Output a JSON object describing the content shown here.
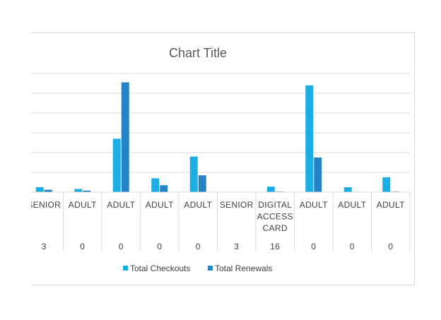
{
  "chart_data": {
    "type": "bar",
    "title": "Chart Title",
    "categories": [
      [
        "SENIOR",
        "3"
      ],
      [
        "ADULT",
        "0"
      ],
      [
        "ADULT",
        "0"
      ],
      [
        "ADULT",
        "0"
      ],
      [
        "ADULT",
        "0"
      ],
      [
        "SENIOR",
        "3"
      ],
      [
        "DIGITAL ACCESS CARD",
        "16"
      ],
      [
        "ADULT",
        "0"
      ],
      [
        "ADULT",
        "0"
      ],
      [
        "ADULT",
        "0"
      ]
    ],
    "series": [
      {
        "name": "Total Checkouts",
        "color": "#1cade4",
        "values": [
          2.5,
          1.6,
          27,
          7,
          18,
          0.1,
          2.8,
          54,
          2.5,
          7.5
        ]
      },
      {
        "name": "Total Renewals",
        "color": "#2683c6",
        "values": [
          1.2,
          0.8,
          55.5,
          3.5,
          8.5,
          0,
          0.3,
          17.5,
          0.2,
          0.3
        ]
      }
    ],
    "ylim": [
      0,
      60
    ],
    "grid": true,
    "legend": "bottom"
  }
}
